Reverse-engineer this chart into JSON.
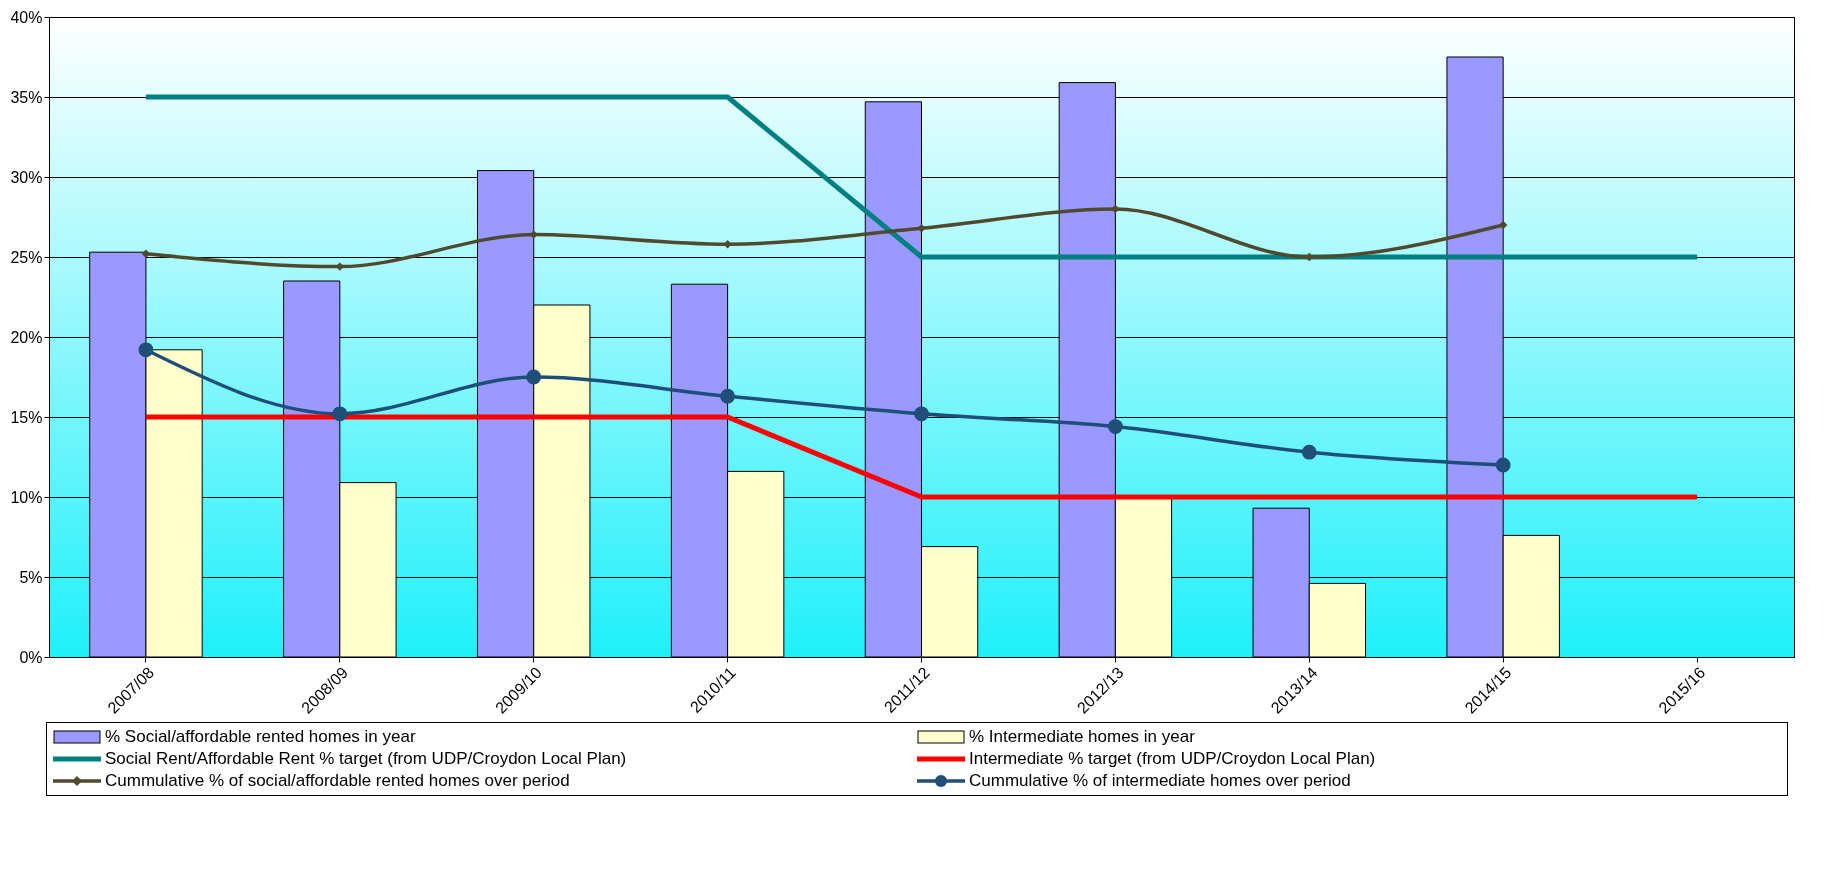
{
  "chart_data": {
    "type": "bar",
    "categories": [
      "2007/08",
      "2008/09",
      "2009/10",
      "2010/11",
      "2011/12",
      "2012/13",
      "2013/14",
      "2014/15",
      "2015/16"
    ],
    "ylim": [
      0,
      0.4
    ],
    "yticks": [
      {
        "value": 0,
        "label": "0%"
      },
      {
        "value": 0.05,
        "label": "5%"
      },
      {
        "value": 0.1,
        "label": "10%"
      },
      {
        "value": 0.15,
        "label": "15%"
      },
      {
        "value": 0.2,
        "label": "20%"
      },
      {
        "value": 0.25,
        "label": "25%"
      },
      {
        "value": 0.3,
        "label": "30%"
      },
      {
        "value": 0.35,
        "label": "35%"
      },
      {
        "value": 0.4,
        "label": "40%"
      }
    ],
    "grid": "y",
    "legend": "bottom",
    "series": [
      {
        "name": "% Social/affordable rented homes in year",
        "color": "#9999ff",
        "values": [
          0.253,
          0.235,
          0.304,
          0.233,
          0.347,
          0.359,
          0.093,
          0.375,
          null
        ]
      },
      {
        "name": "% Intermediate homes in year",
        "color": "#ffffcc",
        "values": [
          0.192,
          0.109,
          0.22,
          0.116,
          0.069,
          0.1,
          0.046,
          0.076,
          null
        ]
      },
      {
        "name": "Social Rent/Affordable Rent % target (from UDP/Croydon Local Plan)",
        "type": "line",
        "color": "#008080",
        "marker": "none",
        "values": [
          0.35,
          0.35,
          0.35,
          0.35,
          0.25,
          0.25,
          0.25,
          0.25,
          0.25
        ]
      },
      {
        "name": "Intermediate % target (from UDP/Croydon Local Plan)",
        "type": "line",
        "color": "#ff0000",
        "marker": "none",
        "values": [
          0.15,
          0.15,
          0.15,
          0.15,
          0.1,
          0.1,
          0.1,
          0.1,
          0.1
        ]
      },
      {
        "name": "Cummulative % of social/affordable rented homes over period",
        "type": "line",
        "color": "#4f4a2e",
        "marker": "diamond",
        "values": [
          0.252,
          0.244,
          0.264,
          0.258,
          0.268,
          0.28,
          0.25,
          0.27,
          null
        ]
      },
      {
        "name": "Cummulative % of intermediate homes over period",
        "type": "line",
        "color": "#1f4e79",
        "marker": "circle",
        "values": [
          0.192,
          0.152,
          0.175,
          0.163,
          0.152,
          0.144,
          0.128,
          0.12,
          null
        ]
      }
    ]
  }
}
